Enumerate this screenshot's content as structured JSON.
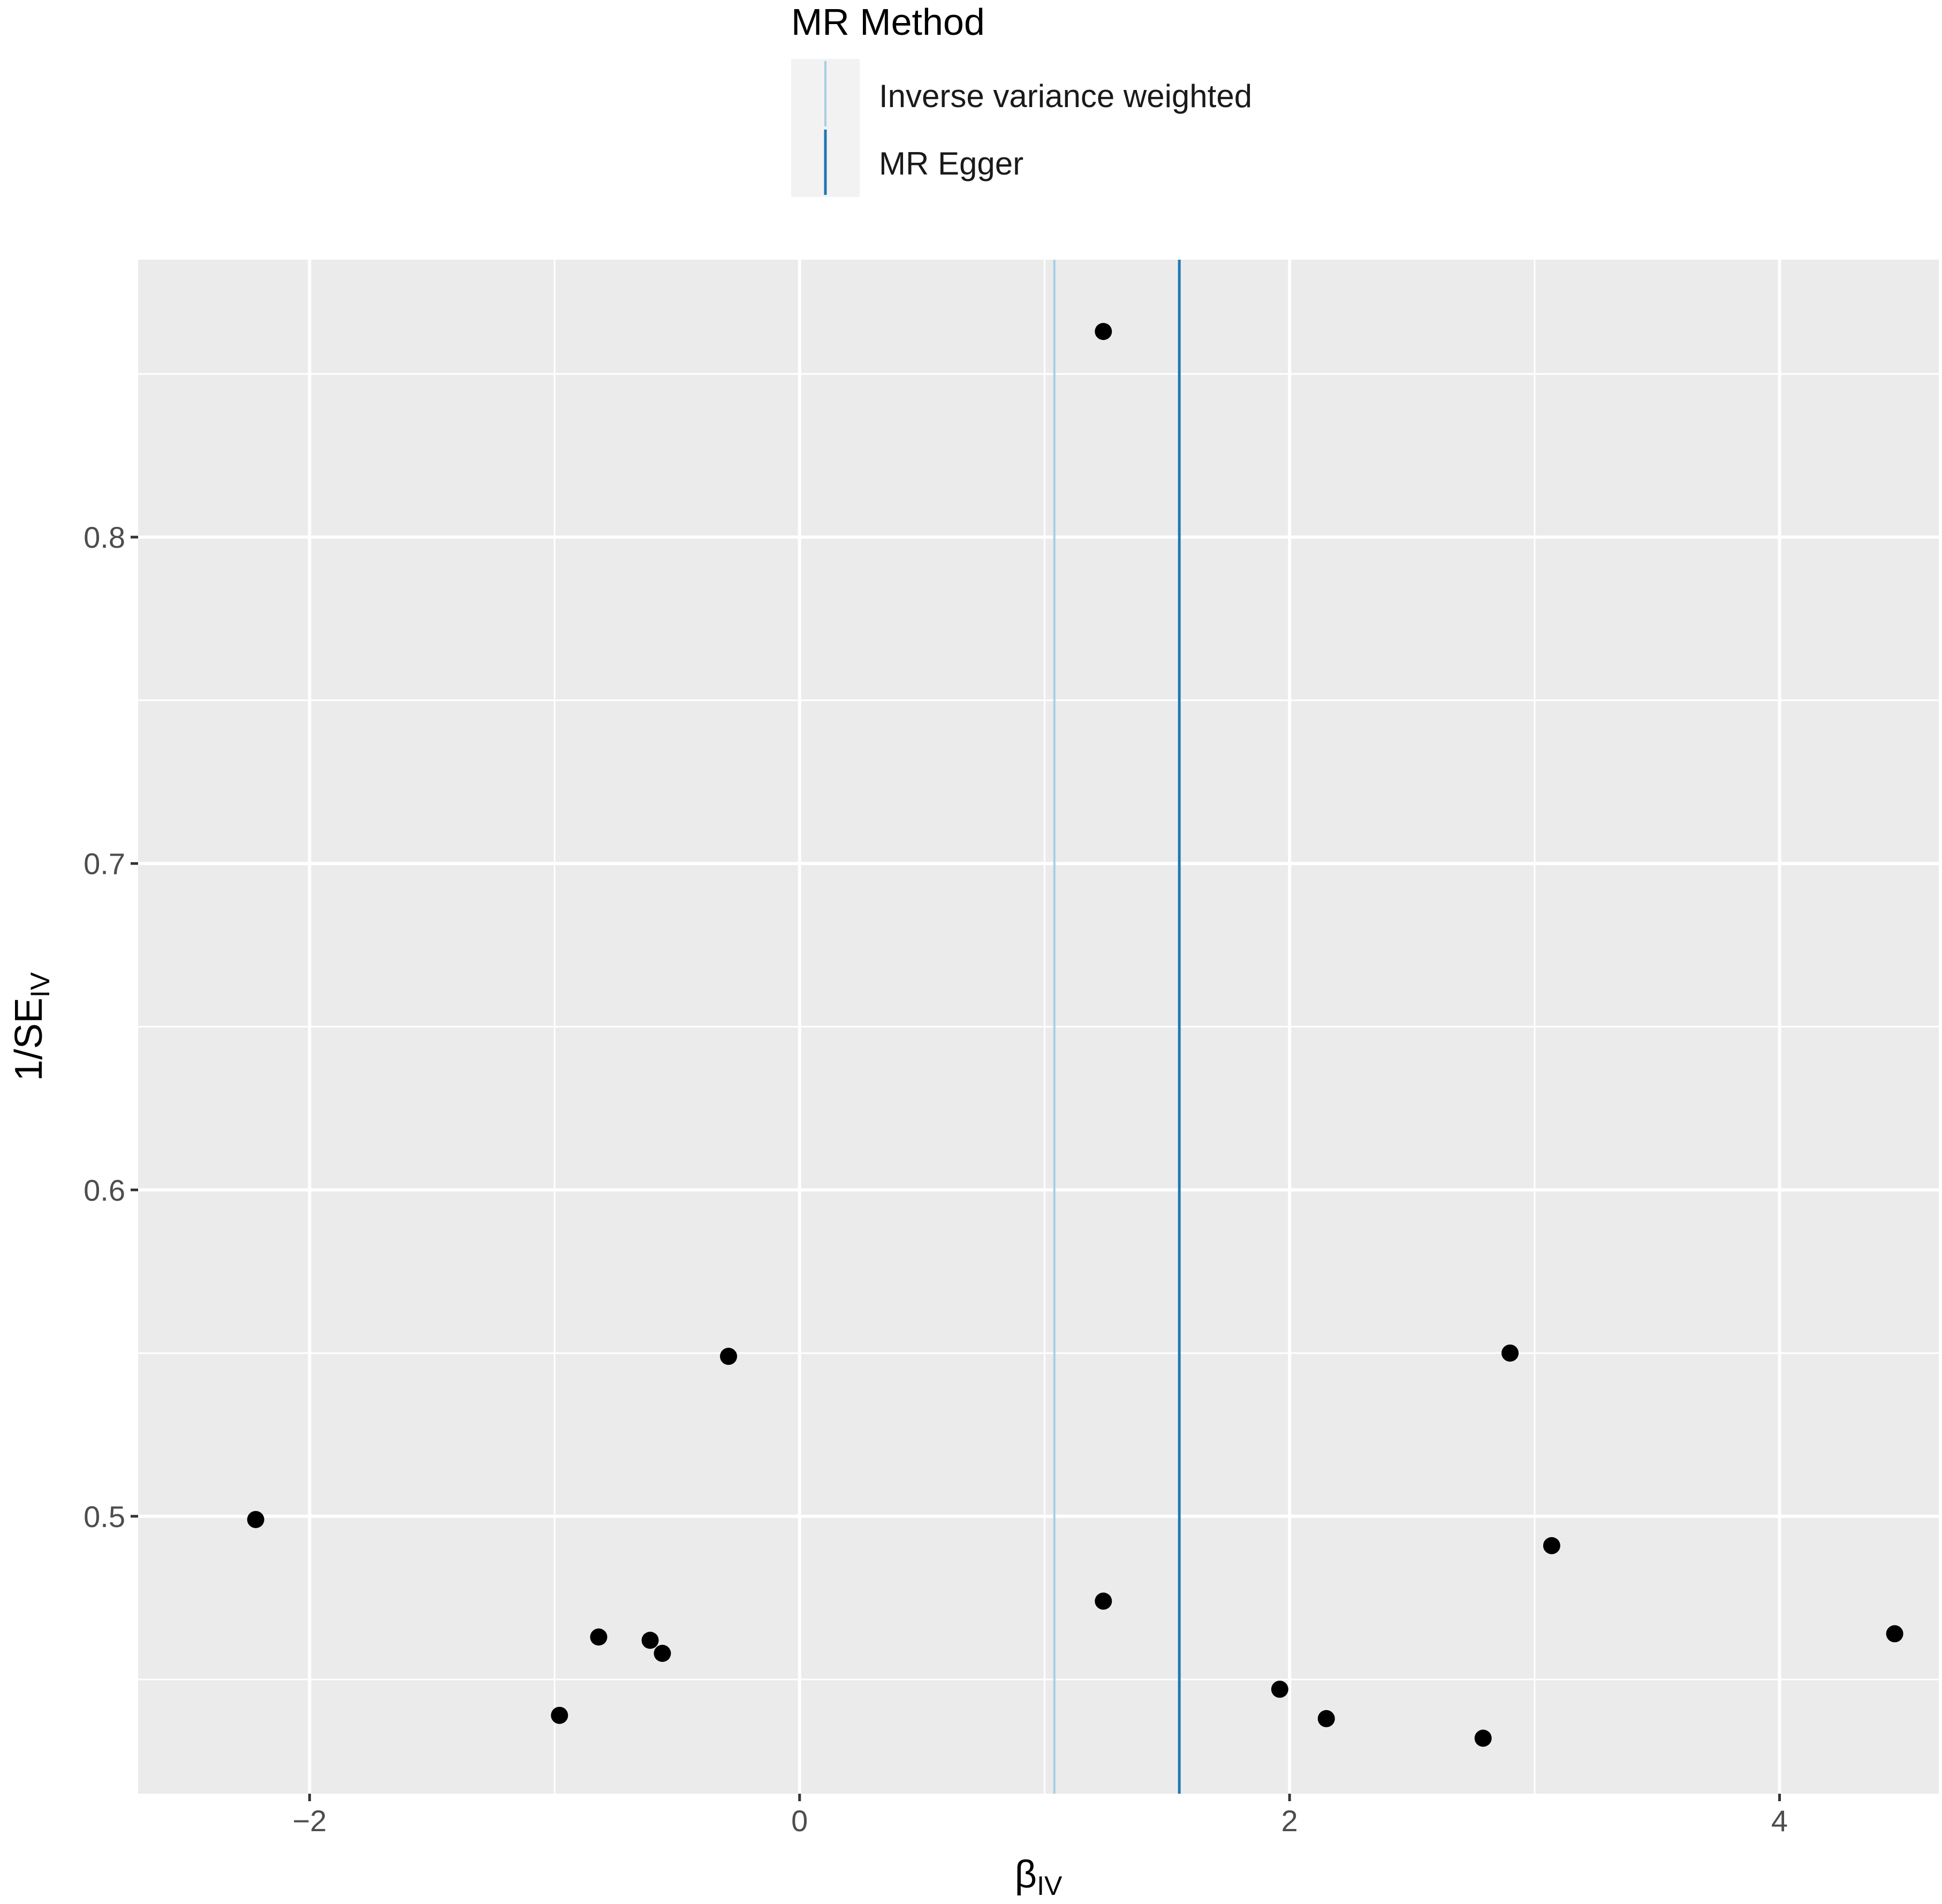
{
  "chart_data": {
    "type": "scatter",
    "title": "",
    "xlabel": "β",
    "xlabel_sub": "IV",
    "ylabel": "1/SE",
    "ylabel_sub": "IV",
    "xlim": [
      -2.7,
      4.65
    ],
    "ylim": [
      0.415,
      0.885
    ],
    "x_ticks": [
      -2,
      0,
      2,
      4
    ],
    "x_tick_labels": [
      "−2",
      "0",
      "2",
      "4"
    ],
    "y_ticks": [
      0.5,
      0.6,
      0.7,
      0.8
    ],
    "y_tick_labels": [
      "0.5",
      "0.6",
      "0.7",
      "0.8"
    ],
    "grid": true,
    "panel_background": "#ebebeb",
    "points": [
      {
        "x": -2.22,
        "y": 0.499
      },
      {
        "x": -0.98,
        "y": 0.439
      },
      {
        "x": -0.82,
        "y": 0.463
      },
      {
        "x": -0.61,
        "y": 0.462
      },
      {
        "x": -0.56,
        "y": 0.458
      },
      {
        "x": -0.29,
        "y": 0.549
      },
      {
        "x": 1.24,
        "y": 0.863
      },
      {
        "x": 1.24,
        "y": 0.474
      },
      {
        "x": 1.96,
        "y": 0.447
      },
      {
        "x": 2.15,
        "y": 0.438
      },
      {
        "x": 2.79,
        "y": 0.432
      },
      {
        "x": 2.9,
        "y": 0.55
      },
      {
        "x": 3.07,
        "y": 0.491
      },
      {
        "x": 4.47,
        "y": 0.464
      }
    ],
    "point_color": "#000000",
    "vlines": [
      {
        "name": "Inverse variance weighted",
        "x": 1.04,
        "color": "#a6cee3"
      },
      {
        "name": "MR Egger",
        "x": 1.55,
        "color": "#1f78b4"
      }
    ],
    "legend": {
      "title": "MR Method",
      "position": "top",
      "items": [
        "Inverse variance weighted",
        "MR Egger"
      ]
    }
  }
}
